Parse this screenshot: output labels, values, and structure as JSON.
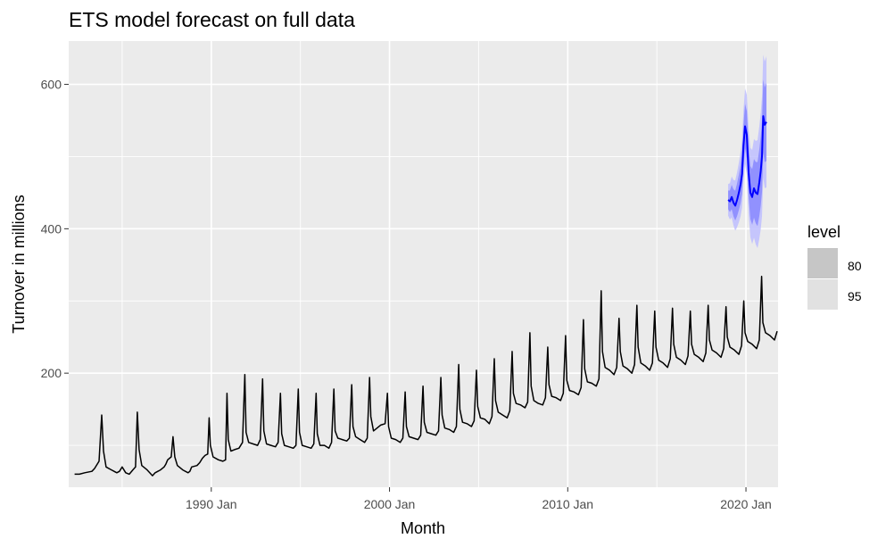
{
  "chart_data": {
    "type": "line",
    "title": "ETS model forecast on full data",
    "xlabel": "Month",
    "ylabel": "Turnover in millions",
    "xlim": [
      1982.0,
      2021.8
    ],
    "ylim": [
      42,
      660
    ],
    "x_ticks": [
      {
        "value": 1990,
        "label": "1990 Jan"
      },
      {
        "value": 2000,
        "label": "2000 Jan"
      },
      {
        "value": 2010,
        "label": "2010 Jan"
      },
      {
        "value": 2020,
        "label": "2020 Jan"
      }
    ],
    "x_minor_ticks": [
      1985,
      1995,
      2005,
      2015
    ],
    "y_ticks": [
      {
        "value": 200,
        "label": "200"
      },
      {
        "value": 400,
        "label": "400"
      },
      {
        "value": 600,
        "label": "600"
      }
    ],
    "y_minor_ticks": [
      100,
      300,
      500
    ],
    "grid": true,
    "legend": {
      "title": "level",
      "position": "right",
      "entries": [
        {
          "label": "80",
          "color": "#c6c6c6"
        },
        {
          "label": "95",
          "color": "#e1e1e1"
        }
      ]
    },
    "colors": {
      "panel": "#ebebeb",
      "grid": "#ffffff",
      "history": "#000000",
      "forecast": "#0000ff",
      "interval_80": "#7f7fff",
      "interval_95": "#bebeff"
    },
    "series": [
      {
        "name": "Turnover",
        "points": [
          [
            1982.33,
            60
          ],
          [
            1982.6,
            60
          ],
          [
            1982.9,
            62
          ],
          [
            1983.3,
            64
          ],
          [
            1983.45,
            68
          ],
          [
            1983.7,
            78
          ],
          [
            1983.85,
            142
          ],
          [
            1983.95,
            92
          ],
          [
            1984.1,
            70
          ],
          [
            1984.4,
            66
          ],
          [
            1984.7,
            62
          ],
          [
            1984.85,
            64
          ],
          [
            1985.0,
            70
          ],
          [
            1985.2,
            62
          ],
          [
            1985.4,
            60
          ],
          [
            1985.6,
            66
          ],
          [
            1985.75,
            70
          ],
          [
            1985.85,
            146
          ],
          [
            1985.95,
            94
          ],
          [
            1986.1,
            72
          ],
          [
            1986.4,
            66
          ],
          [
            1986.7,
            58
          ],
          [
            1986.85,
            62
          ],
          [
            1987.0,
            64
          ],
          [
            1987.15,
            66
          ],
          [
            1987.35,
            70
          ],
          [
            1987.45,
            74
          ],
          [
            1987.55,
            80
          ],
          [
            1987.75,
            84
          ],
          [
            1987.85,
            112
          ],
          [
            1987.95,
            84
          ],
          [
            1988.1,
            72
          ],
          [
            1988.4,
            66
          ],
          [
            1988.7,
            62
          ],
          [
            1988.8,
            64
          ],
          [
            1988.9,
            70
          ],
          [
            1989.2,
            72
          ],
          [
            1989.35,
            76
          ],
          [
            1989.5,
            82
          ],
          [
            1989.65,
            86
          ],
          [
            1989.8,
            88
          ],
          [
            1989.88,
            138
          ],
          [
            1989.95,
            100
          ],
          [
            1990.1,
            84
          ],
          [
            1990.4,
            80
          ],
          [
            1990.65,
            78
          ],
          [
            1990.8,
            80
          ],
          [
            1990.88,
            172
          ],
          [
            1990.95,
            108
          ],
          [
            1991.1,
            92
          ],
          [
            1991.3,
            94
          ],
          [
            1991.55,
            96
          ],
          [
            1991.75,
            104
          ],
          [
            1991.88,
            198
          ],
          [
            1991.95,
            118
          ],
          [
            1992.1,
            104
          ],
          [
            1992.35,
            102
          ],
          [
            1992.6,
            100
          ],
          [
            1992.75,
            108
          ],
          [
            1992.88,
            192
          ],
          [
            1992.95,
            120
          ],
          [
            1993.1,
            102
          ],
          [
            1993.35,
            100
          ],
          [
            1993.6,
            98
          ],
          [
            1993.75,
            104
          ],
          [
            1993.88,
            172
          ],
          [
            1993.95,
            116
          ],
          [
            1994.1,
            100
          ],
          [
            1994.35,
            98
          ],
          [
            1994.6,
            96
          ],
          [
            1994.75,
            100
          ],
          [
            1994.88,
            178
          ],
          [
            1994.95,
            118
          ],
          [
            1995.1,
            100
          ],
          [
            1995.35,
            98
          ],
          [
            1995.6,
            96
          ],
          [
            1995.75,
            102
          ],
          [
            1995.88,
            172
          ],
          [
            1995.95,
            116
          ],
          [
            1996.1,
            100
          ],
          [
            1996.35,
            100
          ],
          [
            1996.6,
            96
          ],
          [
            1996.75,
            104
          ],
          [
            1996.88,
            178
          ],
          [
            1996.95,
            120
          ],
          [
            1997.1,
            110
          ],
          [
            1997.35,
            108
          ],
          [
            1997.6,
            106
          ],
          [
            1997.75,
            110
          ],
          [
            1997.88,
            184
          ],
          [
            1997.95,
            126
          ],
          [
            1998.1,
            112
          ],
          [
            1998.35,
            108
          ],
          [
            1998.6,
            104
          ],
          [
            1998.75,
            110
          ],
          [
            1998.88,
            194
          ],
          [
            1998.95,
            140
          ],
          [
            1999.1,
            120
          ],
          [
            1999.3,
            124
          ],
          [
            1999.5,
            128
          ],
          [
            1999.75,
            130
          ],
          [
            1999.88,
            172
          ],
          [
            1999.95,
            126
          ],
          [
            2000.1,
            110
          ],
          [
            2000.35,
            108
          ],
          [
            2000.6,
            104
          ],
          [
            2000.75,
            110
          ],
          [
            2000.88,
            174
          ],
          [
            2000.95,
            126
          ],
          [
            2001.1,
            112
          ],
          [
            2001.35,
            110
          ],
          [
            2001.6,
            108
          ],
          [
            2001.75,
            114
          ],
          [
            2001.88,
            182
          ],
          [
            2001.95,
            132
          ],
          [
            2002.1,
            118
          ],
          [
            2002.35,
            116
          ],
          [
            2002.6,
            114
          ],
          [
            2002.75,
            120
          ],
          [
            2002.88,
            194
          ],
          [
            2002.95,
            142
          ],
          [
            2003.1,
            124
          ],
          [
            2003.35,
            122
          ],
          [
            2003.6,
            118
          ],
          [
            2003.75,
            126
          ],
          [
            2003.88,
            212
          ],
          [
            2003.95,
            150
          ],
          [
            2004.1,
            132
          ],
          [
            2004.35,
            130
          ],
          [
            2004.6,
            126
          ],
          [
            2004.75,
            134
          ],
          [
            2004.88,
            204
          ],
          [
            2004.95,
            154
          ],
          [
            2005.1,
            138
          ],
          [
            2005.35,
            136
          ],
          [
            2005.6,
            130
          ],
          [
            2005.75,
            140
          ],
          [
            2005.88,
            220
          ],
          [
            2005.95,
            162
          ],
          [
            2006.1,
            146
          ],
          [
            2006.35,
            142
          ],
          [
            2006.6,
            138
          ],
          [
            2006.75,
            148
          ],
          [
            2006.88,
            230
          ],
          [
            2006.95,
            172
          ],
          [
            2007.1,
            158
          ],
          [
            2007.35,
            156
          ],
          [
            2007.6,
            152
          ],
          [
            2007.75,
            160
          ],
          [
            2007.88,
            256
          ],
          [
            2007.95,
            182
          ],
          [
            2008.1,
            162
          ],
          [
            2008.35,
            158
          ],
          [
            2008.6,
            156
          ],
          [
            2008.75,
            166
          ],
          [
            2008.88,
            236
          ],
          [
            2008.95,
            184
          ],
          [
            2009.1,
            168
          ],
          [
            2009.35,
            166
          ],
          [
            2009.6,
            162
          ],
          [
            2009.75,
            172
          ],
          [
            2009.88,
            252
          ],
          [
            2009.95,
            190
          ],
          [
            2010.1,
            176
          ],
          [
            2010.35,
            174
          ],
          [
            2010.6,
            170
          ],
          [
            2010.75,
            180
          ],
          [
            2010.88,
            274
          ],
          [
            2010.95,
            206
          ],
          [
            2011.1,
            188
          ],
          [
            2011.35,
            186
          ],
          [
            2011.6,
            182
          ],
          [
            2011.75,
            192
          ],
          [
            2011.88,
            314
          ],
          [
            2011.95,
            230
          ],
          [
            2012.1,
            208
          ],
          [
            2012.35,
            204
          ],
          [
            2012.6,
            198
          ],
          [
            2012.75,
            208
          ],
          [
            2012.88,
            276
          ],
          [
            2012.95,
            230
          ],
          [
            2013.1,
            210
          ],
          [
            2013.35,
            206
          ],
          [
            2013.6,
            200
          ],
          [
            2013.75,
            212
          ],
          [
            2013.88,
            294
          ],
          [
            2013.95,
            236
          ],
          [
            2014.1,
            214
          ],
          [
            2014.35,
            210
          ],
          [
            2014.6,
            204
          ],
          [
            2014.75,
            214
          ],
          [
            2014.88,
            286
          ],
          [
            2014.95,
            236
          ],
          [
            2015.1,
            218
          ],
          [
            2015.35,
            214
          ],
          [
            2015.6,
            208
          ],
          [
            2015.75,
            220
          ],
          [
            2015.88,
            290
          ],
          [
            2015.95,
            240
          ],
          [
            2016.1,
            222
          ],
          [
            2016.35,
            218
          ],
          [
            2016.6,
            212
          ],
          [
            2016.75,
            224
          ],
          [
            2016.88,
            286
          ],
          [
            2016.95,
            240
          ],
          [
            2017.1,
            226
          ],
          [
            2017.35,
            222
          ],
          [
            2017.6,
            216
          ],
          [
            2017.75,
            228
          ],
          [
            2017.88,
            294
          ],
          [
            2017.95,
            246
          ],
          [
            2018.1,
            232
          ],
          [
            2018.35,
            228
          ],
          [
            2018.6,
            222
          ],
          [
            2018.75,
            234
          ],
          [
            2018.88,
            292
          ],
          [
            2018.95,
            250
          ],
          [
            2019.1,
            236
          ],
          [
            2019.35,
            232
          ],
          [
            2019.6,
            226
          ],
          [
            2019.75,
            238
          ],
          [
            2019.88,
            300
          ],
          [
            2019.95,
            256
          ],
          [
            2020.1,
            244
          ],
          [
            2020.35,
            240
          ],
          [
            2020.6,
            234
          ],
          [
            2020.75,
            246
          ],
          [
            2020.88,
            334
          ],
          [
            2020.95,
            270
          ],
          [
            2021.1,
            256
          ],
          [
            2021.35,
            252
          ],
          [
            2021.6,
            246
          ],
          [
            2021.75,
            258
          ]
        ]
      },
      {
        "name": "Forecast",
        "points": [
          [
            2019.0,
            440
          ],
          [
            2019.1,
            438
          ],
          [
            2019.2,
            444
          ],
          [
            2019.3,
            436
          ],
          [
            2019.4,
            432
          ],
          [
            2019.5,
            440
          ],
          [
            2019.6,
            450
          ],
          [
            2019.7,
            462
          ],
          [
            2019.78,
            476
          ],
          [
            2019.86,
            514
          ],
          [
            2019.95,
            542
          ],
          [
            2020.05,
            530
          ],
          [
            2020.15,
            478
          ],
          [
            2020.25,
            450
          ],
          [
            2020.35,
            444
          ],
          [
            2020.45,
            456
          ],
          [
            2020.55,
            450
          ],
          [
            2020.65,
            448
          ],
          [
            2020.75,
            464
          ],
          [
            2020.83,
            480
          ],
          [
            2020.9,
            500
          ],
          [
            2020.97,
            556
          ],
          [
            2021.05,
            544
          ],
          [
            2021.15,
            548
          ]
        ]
      }
    ]
  }
}
